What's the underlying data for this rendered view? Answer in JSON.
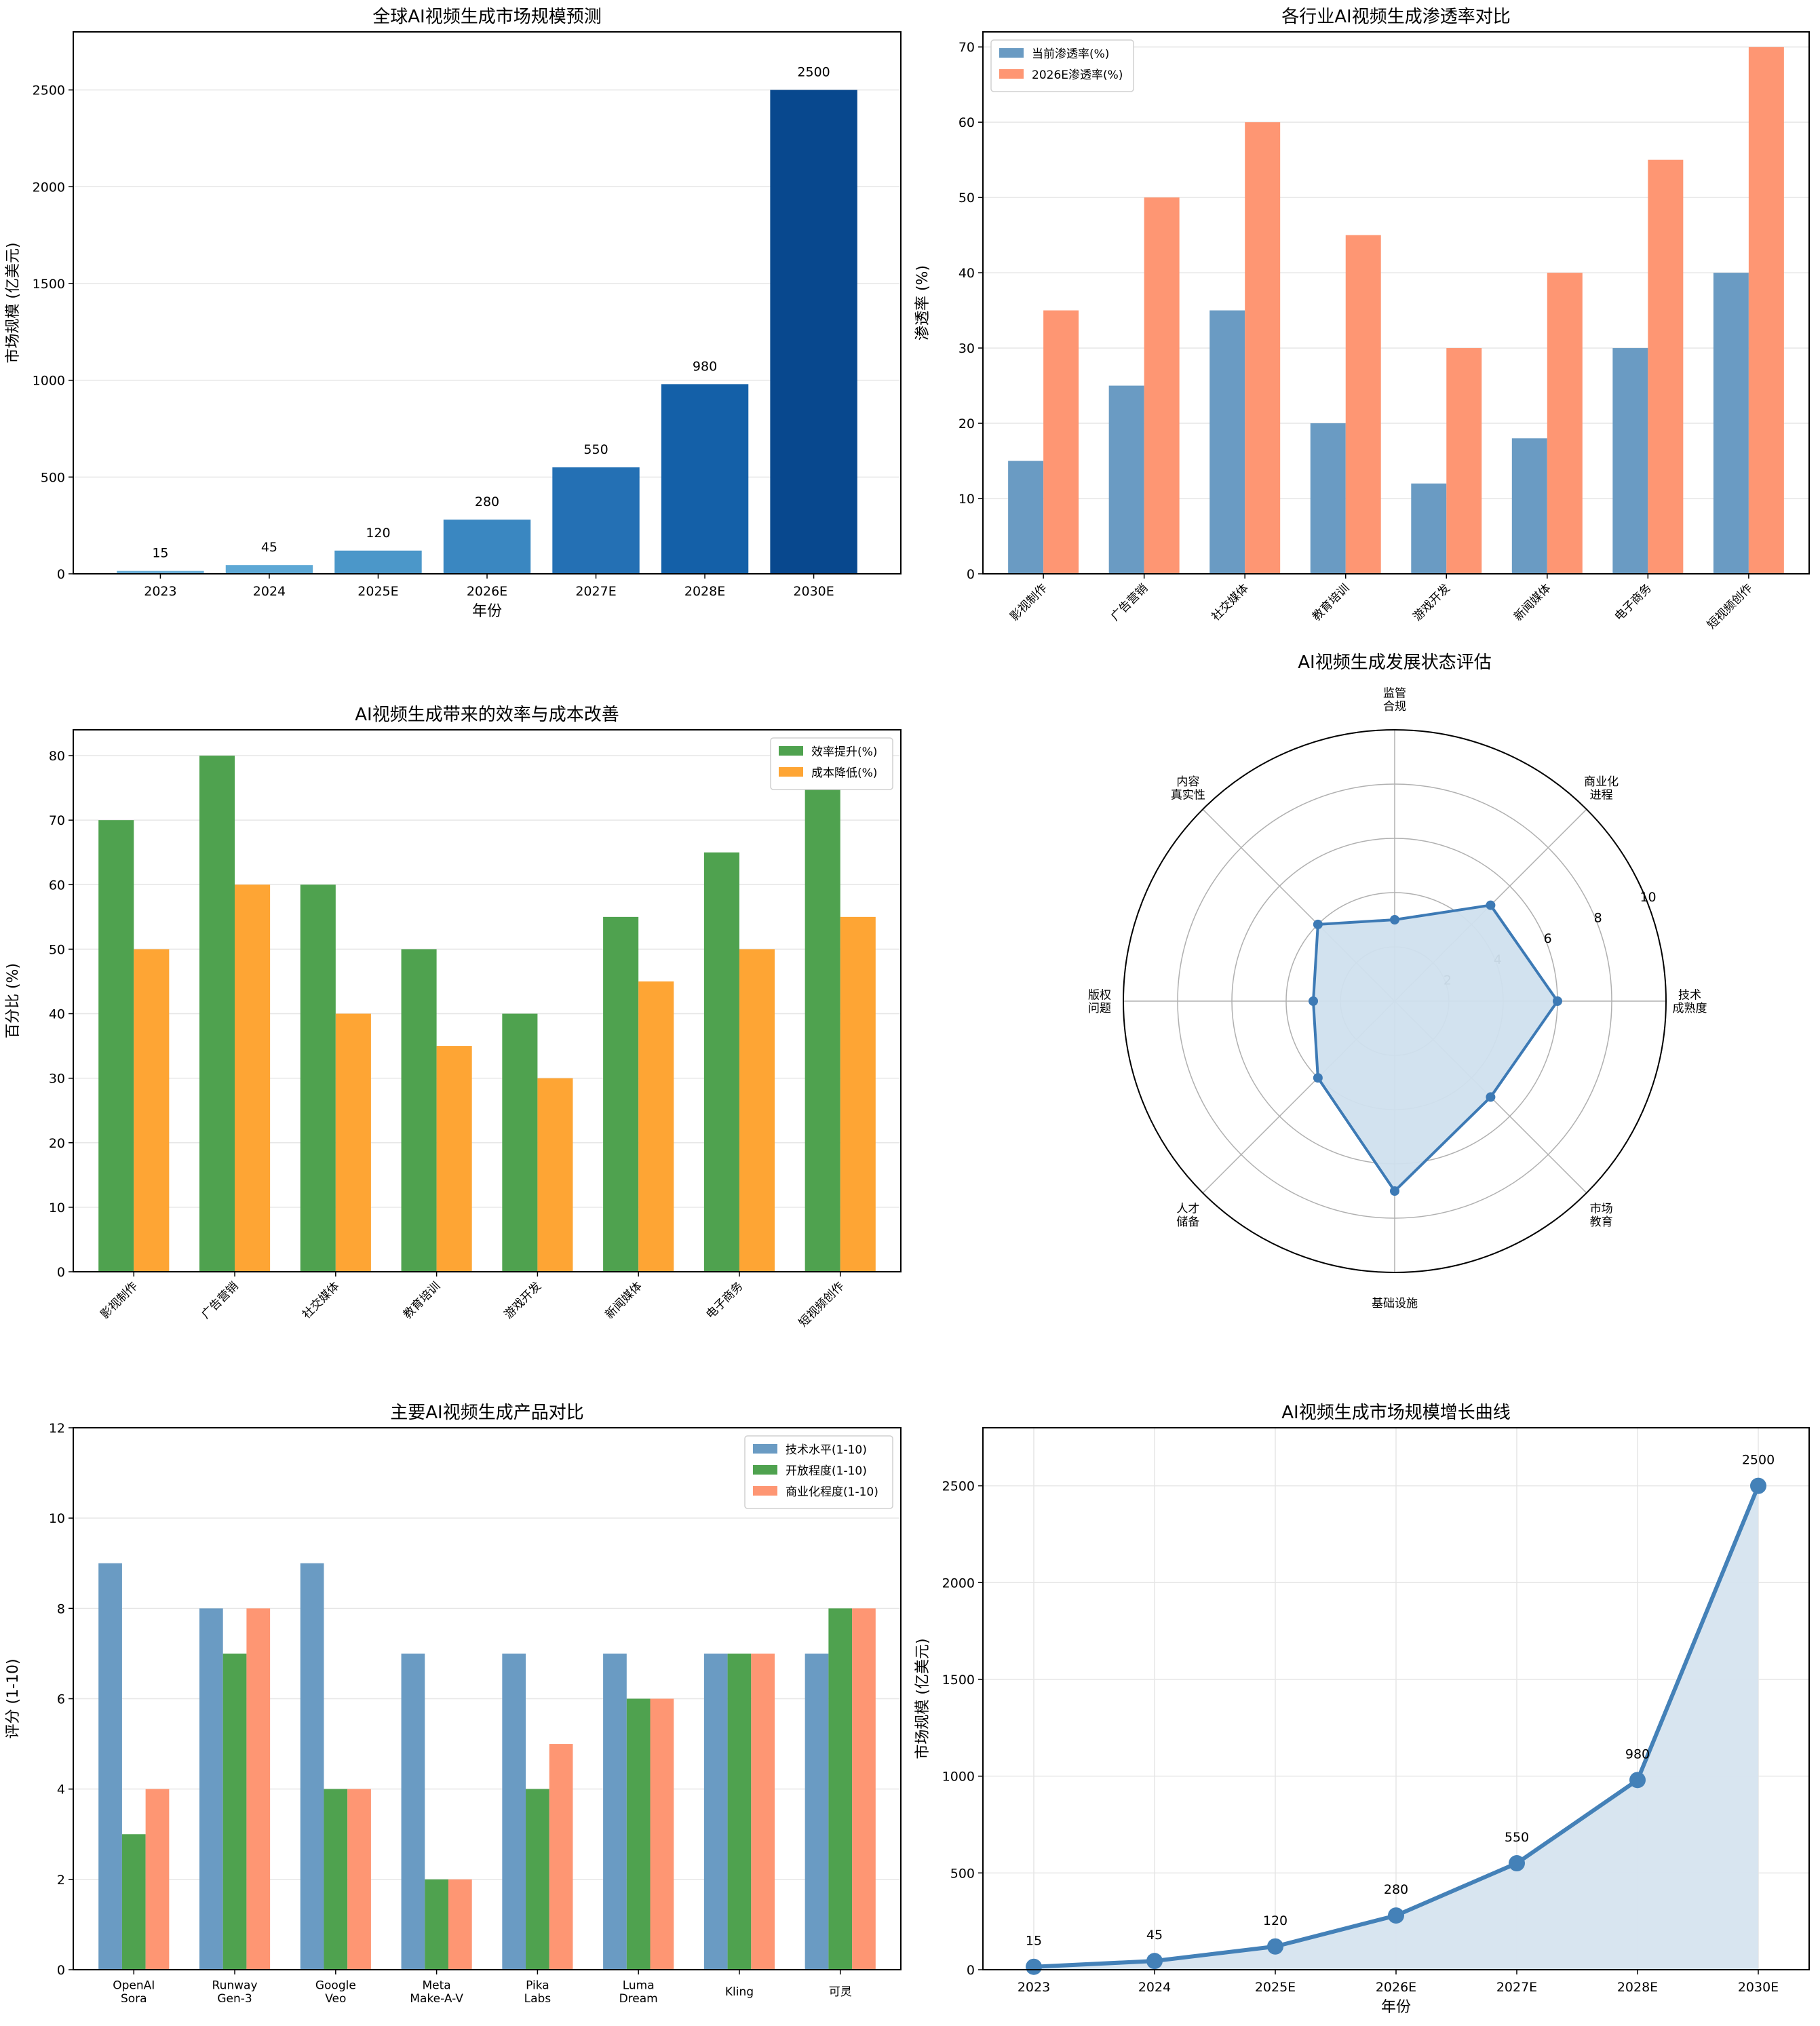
{
  "chart_data": [
    {
      "id": "market_bar",
      "type": "bar",
      "title": "全球AI视频生成市场规模预测",
      "xlabel": "年份",
      "ylabel": "市场规模 (亿美元)",
      "categories": [
        "2023",
        "2024",
        "2025E",
        "2026E",
        "2027E",
        "2028E",
        "2030E"
      ],
      "values": [
        15,
        45,
        120,
        280,
        550,
        980,
        2500
      ],
      "ylim": [
        0,
        2800
      ],
      "yticks": [
        0,
        500,
        1000,
        1500,
        2000,
        2500
      ],
      "colors": [
        "#6baed6",
        "#5ea8d5",
        "#4b97c9",
        "#3a87c1",
        "#2470b4",
        "#1460a8",
        "#08488e"
      ],
      "grid": true
    },
    {
      "id": "penetration",
      "type": "bar",
      "title": "各行业AI视频生成渗透率对比",
      "xlabel": "",
      "ylabel": "渗透率 (%)",
      "categories": [
        "影视制作",
        "广告营销",
        "社交媒体",
        "教育培训",
        "游戏开发",
        "新闻媒体",
        "电子商务",
        "短视频创作"
      ],
      "series": [
        {
          "name": "当前渗透率(%)",
          "values": [
            15,
            25,
            35,
            20,
            12,
            18,
            30,
            40
          ],
          "color": "#6a9bc3"
        },
        {
          "name": "2026E渗透率(%)",
          "values": [
            35,
            50,
            60,
            45,
            30,
            40,
            55,
            70
          ],
          "color": "#fe9673"
        }
      ],
      "ylim": [
        0,
        72
      ],
      "yticks": [
        0,
        10,
        20,
        30,
        40,
        50,
        60,
        70
      ],
      "legend": "top-left",
      "grid": true
    },
    {
      "id": "efficiency",
      "type": "bar",
      "title": "AI视频生成带来的效率与成本改善",
      "xlabel": "",
      "ylabel": "百分比 (%)",
      "categories": [
        "影视制作",
        "广告营销",
        "社交媒体",
        "教育培训",
        "游戏开发",
        "新闻媒体",
        "电子商务",
        "短视频创作"
      ],
      "series": [
        {
          "name": "效率提升(%)",
          "values": [
            70,
            80,
            60,
            50,
            40,
            55,
            65,
            75
          ],
          "color": "#4fa24f"
        },
        {
          "name": "成本降低(%)",
          "values": [
            50,
            60,
            40,
            35,
            30,
            45,
            50,
            55
          ],
          "color": "#fea534"
        }
      ],
      "ylim": [
        0,
        84
      ],
      "yticks": [
        0,
        10,
        20,
        30,
        40,
        50,
        60,
        70,
        80
      ],
      "legend": "top-right",
      "grid": true
    },
    {
      "id": "radar",
      "type": "radar",
      "title": "AI视频生成发展状态评估",
      "axes": [
        "技术\n成熟度",
        "商业化\n进程",
        "监管\n合规",
        "内容\n真实性",
        "版权\n问题",
        "人才\n储备",
        "基础设施",
        "市场\n教育"
      ],
      "values": [
        6,
        5,
        3,
        4,
        3,
        4,
        7,
        5
      ],
      "rlim": [
        0,
        10
      ],
      "rticks": [
        2,
        4,
        6,
        8,
        10
      ],
      "color": "#3d7ab5",
      "fill": "#d0e0ee"
    },
    {
      "id": "products",
      "type": "bar",
      "title": "主要AI视频生成产品对比",
      "xlabel": "",
      "ylabel": "评分 (1-10)",
      "categories": [
        "OpenAI\nSora",
        "Runway\nGen-3",
        "Google\nVeo",
        "Meta\nMake-A-V",
        "Pika\nLabs",
        "Luma\nDream",
        "Kling",
        "可灵"
      ],
      "series": [
        {
          "name": "技术水平(1-10)",
          "values": [
            9,
            8,
            9,
            7,
            7,
            7,
            7,
            7
          ],
          "color": "#6a9bc3"
        },
        {
          "name": "开放程度(1-10)",
          "values": [
            3,
            7,
            4,
            2,
            4,
            6,
            7,
            8
          ],
          "color": "#4fa24f"
        },
        {
          "name": "商业化程度(1-10)",
          "values": [
            4,
            8,
            4,
            2,
            5,
            6,
            7,
            8
          ],
          "color": "#fe9673"
        }
      ],
      "ylim": [
        0,
        12
      ],
      "yticks": [
        0,
        2,
        4,
        6,
        8,
        10,
        12
      ],
      "legend": "top-right",
      "grid": true
    },
    {
      "id": "growth_line",
      "type": "line",
      "title": "AI视频生成市场规模增长曲线",
      "xlabel": "年份",
      "ylabel": "市场规模 (亿美元)",
      "categories": [
        "2023",
        "2024",
        "2025E",
        "2026E",
        "2027E",
        "2028E",
        "2030E"
      ],
      "values": [
        15,
        45,
        120,
        280,
        550,
        980,
        2500
      ],
      "ylim": [
        0,
        2800
      ],
      "yticks": [
        0,
        500,
        1000,
        1500,
        2000,
        2500
      ],
      "color": "#4481b8",
      "fill": "#d6e4ef",
      "grid": true
    }
  ]
}
